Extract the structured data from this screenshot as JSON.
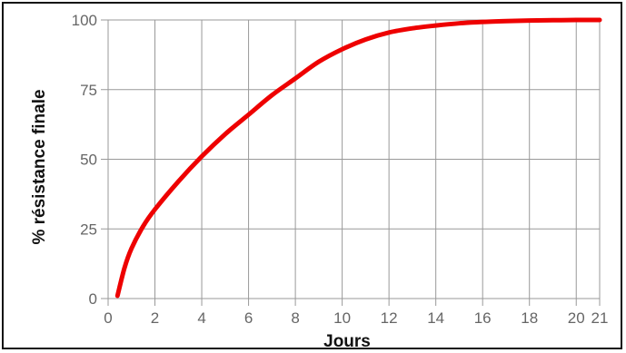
{
  "chart_data": {
    "type": "line",
    "title": "",
    "xlabel": "Jours",
    "ylabel": "% résistance finale",
    "xlim": [
      0,
      21
    ],
    "ylim": [
      0,
      100
    ],
    "x_ticks": [
      0,
      2,
      4,
      6,
      8,
      10,
      12,
      14,
      16,
      18,
      20,
      21
    ],
    "y_ticks": [
      0,
      25,
      50,
      75,
      100
    ],
    "grid": true,
    "legend": "none",
    "colors": {
      "line": "#ee0000",
      "grid": "#999999",
      "tick_text": "#666666",
      "axis_title": "#111111"
    },
    "series": [
      {
        "x": [
          0.4,
          0.7,
          1,
          1.5,
          2,
          3,
          4,
          5,
          6,
          7,
          8,
          9,
          10,
          11,
          12,
          13,
          14,
          15,
          16,
          17,
          18,
          19,
          20,
          21
        ],
        "y": [
          1,
          11,
          18,
          26,
          32,
          42,
          51,
          59,
          66,
          73,
          79,
          85,
          89.5,
          93,
          95.5,
          97,
          98,
          98.8,
          99.3,
          99.6,
          99.8,
          99.9,
          100,
          100
        ]
      }
    ]
  }
}
